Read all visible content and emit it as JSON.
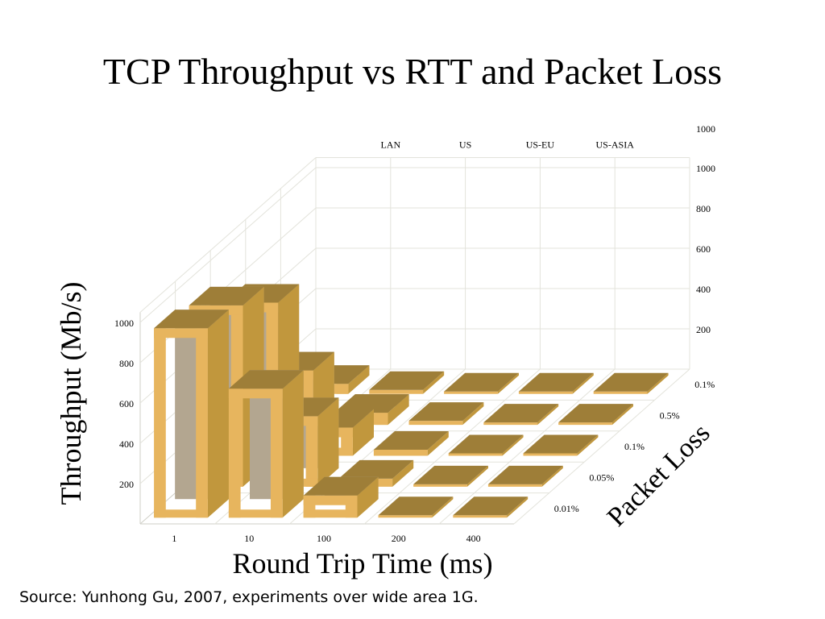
{
  "slide": {
    "title": "TCP Throughput vs RTT and Packet Loss",
    "source": "Source: Yunhong Gu,  2007, experiments over wide area 1G."
  },
  "chart_data": {
    "type": "bar",
    "subtype": "3d-bar",
    "title": "TCP Throughput vs RTT and Packet Loss",
    "xlabel": "Round Trip Time (ms)",
    "ylabel": "Throughput (Mb/s)",
    "zlabel": "Packet Loss",
    "categories": [
      "1",
      "10",
      "100",
      "200",
      "400"
    ],
    "top_labels": [
      "LAN",
      "US",
      "US-EU",
      "US-ASIA"
    ],
    "yticks": [
      "200",
      "400",
      "600",
      "800",
      "1000"
    ],
    "ylim": [
      0,
      1000
    ],
    "grid": true,
    "series": [
      {
        "name": "0.01%",
        "values": [
          940,
          640,
          110,
          10,
          5
        ]
      },
      {
        "name": "0.05%",
        "values": [
          900,
          350,
          40,
          5,
          3
        ]
      },
      {
        "name": "0.1%",
        "values": [
          760,
          140,
          30,
          5,
          3
        ]
      },
      {
        "name": "0.5%",
        "values": [
          270,
          60,
          20,
          5,
          3
        ]
      },
      {
        "name": "0.1%",
        "values": [
          50,
          20,
          10,
          5,
          3
        ]
      }
    ],
    "colors": {
      "bar_front": "#E7B55E",
      "bar_top": "#9E7E38",
      "bar_side": "#C1973D",
      "bar_inner": "#B3A690",
      "grid": "#E3E3DB"
    }
  }
}
